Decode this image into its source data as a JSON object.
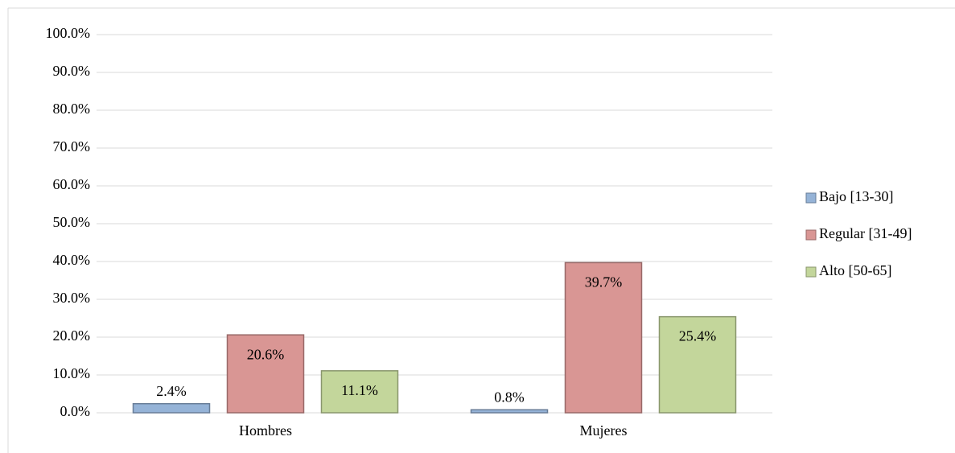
{
  "chart_data": {
    "type": "bar",
    "categories": [
      "Hombres",
      "Mujeres"
    ],
    "series": [
      {
        "name": "Bajo [13-30]",
        "color": "#95b3d7",
        "values": [
          2.4,
          0.8
        ],
        "value_labels": [
          "2.4%",
          "0.8%"
        ]
      },
      {
        "name": "Regular [31-49]",
        "color": "#d99694",
        "values": [
          20.6,
          39.7
        ],
        "value_labels": [
          "20.6%",
          "39.7%"
        ]
      },
      {
        "name": "Alto [50-65]",
        "color": "#c3d69b",
        "values": [
          11.1,
          25.4
        ],
        "value_labels": [
          "11.1%",
          "25.4%"
        ]
      }
    ],
    "ylim": [
      0,
      100
    ],
    "yticks": [
      {
        "value": 0,
        "label": "0.0%"
      },
      {
        "value": 10,
        "label": "10.0%"
      },
      {
        "value": 20,
        "label": "20.0%"
      },
      {
        "value": 30,
        "label": "30.0%"
      },
      {
        "value": 40,
        "label": "40.0%"
      },
      {
        "value": 50,
        "label": "50.0%"
      },
      {
        "value": 60,
        "label": "60.0%"
      },
      {
        "value": 70,
        "label": "70.0%"
      },
      {
        "value": 80,
        "label": "80.0%"
      },
      {
        "value": 90,
        "label": "90.0%"
      },
      {
        "value": 100,
        "label": "100.0%"
      }
    ],
    "grid": true,
    "legend": "right"
  }
}
